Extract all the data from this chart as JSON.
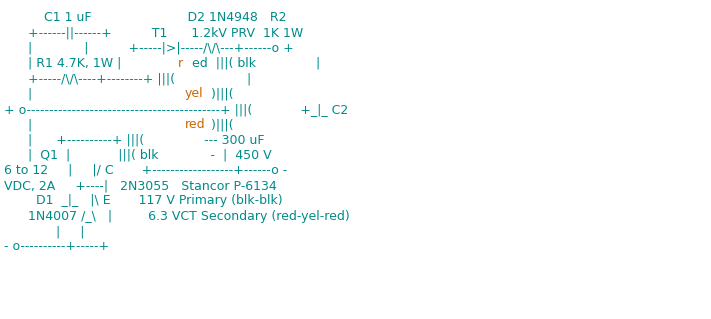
{
  "background_color": "#ffffff",
  "cyan": "#008B8B",
  "orange": "#CC6600",
  "font_size": 9.0,
  "lines": [
    {
      "text": "          C1 1 uF                        D2 1N4948   R2",
      "segs": []
    },
    {
      "text": "      +------||------+          T1      1.2kV PRV  1K 1W",
      "segs": []
    },
    {
      "text": "      |             |          +-----|>|-----/\\/\\---+------o +",
      "segs": []
    },
    {
      "text": "      | R1 4.7K, 1W |   red  |||( blk               |",
      "segs": [
        [
          22,
          25,
          "orange"
        ]
      ]
    },
    {
      "text": "      +-----/\\/\\----+--------+ |||(                  |",
      "segs": []
    },
    {
      "text": "      |                 yel )|||( ",
      "segs": [
        [
          24,
          27,
          "orange"
        ]
      ]
    },
    {
      "text": "      |                 yel )|||( ",
      "segs": [
        [
          24,
          27,
          "orange"
        ]
      ]
    },
    {
      "text": "+ o-------------------------------------------+ |||(            +_|_ C2",
      "segs": []
    },
    {
      "text": "      |                 red )|||( ",
      "segs": [
        [
          24,
          27,
          "orange"
        ]
      ]
    },
    {
      "text": "      |      +----------+ |||(               --- 300 uF",
      "segs": []
    },
    {
      "text": "      |  Q1  |            |||( blk            -  |  450 V",
      "segs": []
    },
    {
      "text": "6 to 12     |     |/ C       +------------------+------o -",
      "segs": []
    },
    {
      "text": "VDC, 2A     +----|   2N3055   Stancor P-6134",
      "segs": []
    },
    {
      "text": "        D1  _|_   |\\ E       117 V Primary (blk-blk)",
      "segs": []
    },
    {
      "text": "      1N4007 /_\\   |         6.3 VCT Secondary (red-yel-red)",
      "segs": []
    },
    {
      "text": "             |     |",
      "segs": []
    },
    {
      "text": "- o----------+-----+",
      "segs": []
    }
  ]
}
